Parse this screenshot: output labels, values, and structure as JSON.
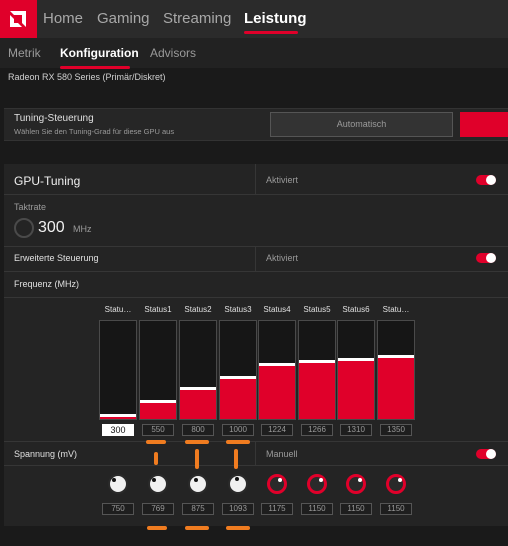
{
  "top_nav": {
    "tabs": [
      "Home",
      "Gaming",
      "Streaming",
      "Leistung"
    ],
    "active_tab": "Leistung"
  },
  "sub_nav": {
    "tabs": [
      "Metrik",
      "Konfiguration",
      "Advisors"
    ],
    "active_tab": "Konfiguration"
  },
  "gpu_name": "Radeon RX 580 Series (Primär/Diskret)",
  "tuning_control": {
    "title": "Tuning-Steuerung",
    "subtitle": "Wählen Sie den Tuning-Grad für diese GPU aus",
    "auto_label": "Automatisch"
  },
  "gpu_tuning": {
    "title": "GPU-Tuning",
    "status_label": "Aktiviert",
    "enabled": true,
    "clock_label": "Taktrate",
    "clock_value": "300",
    "clock_unit": "MHz"
  },
  "advanced_control": {
    "title": "Erweiterte Steuerung",
    "status_label": "Aktiviert",
    "enabled": true
  },
  "frequency": {
    "title": "Frequenz (MHz)",
    "states": [
      {
        "label": "Statu…",
        "value": "300",
        "fill": 0.02
      },
      {
        "label": "Status1",
        "value": "550",
        "fill": 0.16
      },
      {
        "label": "Status2",
        "value": "800",
        "fill": 0.3
      },
      {
        "label": "Status3",
        "value": "1000",
        "fill": 0.41
      },
      {
        "label": "Status4",
        "value": "1224",
        "fill": 0.54
      },
      {
        "label": "Status5",
        "value": "1266",
        "fill": 0.57
      },
      {
        "label": "Status6",
        "value": "1310",
        "fill": 0.59
      },
      {
        "label": "Statu…",
        "value": "1350",
        "fill": 0.62
      }
    ]
  },
  "voltage": {
    "title": "Spannung (mV)",
    "mode_label": "Manuell",
    "enabled": true,
    "values": [
      "750",
      "769",
      "875",
      "1093",
      "1175",
      "1150",
      "1150",
      "1150"
    ]
  },
  "colors": {
    "accent": "#e0002a",
    "annotation": "#f07c20"
  }
}
